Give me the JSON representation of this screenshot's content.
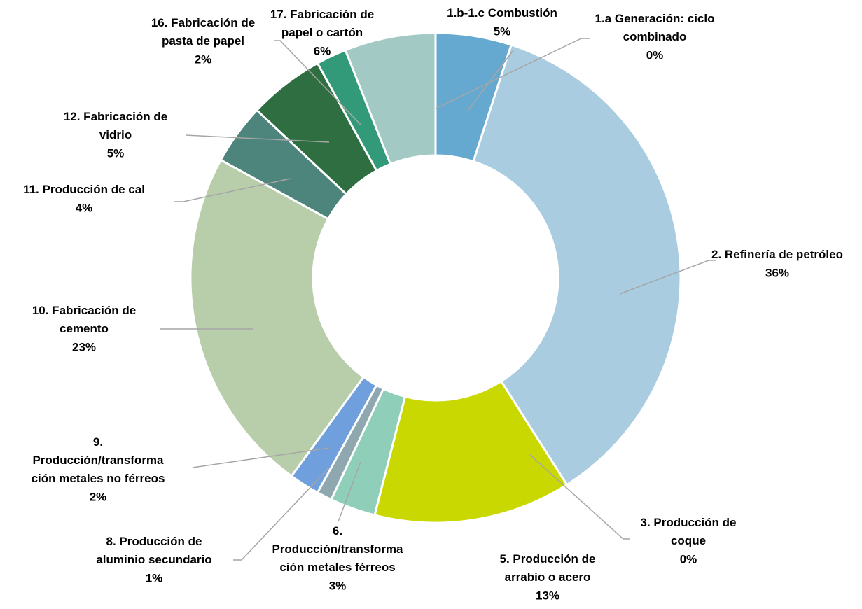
{
  "chart_data": {
    "type": "donut",
    "categories": [
      "1.a Generación: ciclo combinado",
      "1.b-1.c Combustión",
      "2. Refinería de petróleo",
      "3. Producción de coque",
      "5. Producción de arrabio o acero",
      "6. Producción/transformación metales férreos",
      "8. Producción de aluminio secundario",
      "9. Producción/transformación metales no férreos",
      "10. Fabricación de cemento",
      "11. Producción de cal",
      "12. Fabricación de vidrio",
      "16. Fabricación de pasta de papel",
      "17. Fabricación de papel o cartón"
    ],
    "values": [
      0,
      5,
      36,
      0,
      13,
      3,
      1,
      2,
      23,
      4,
      5,
      2,
      6
    ],
    "value_labels": [
      "0%",
      "5%",
      "36%",
      "0%",
      "13%",
      "3%",
      "1%",
      "2%",
      "23%",
      "4%",
      "5%",
      "2%",
      "6%"
    ],
    "colors": [
      "#3f7fb8",
      "#65a9d0",
      "#a9cce0",
      "#7a9cc0",
      "#c9d800",
      "#8fcfba",
      "#8fa8b0",
      "#6f9fdc",
      "#b8ceab",
      "#4d847b",
      "#2f6e40",
      "#329a78",
      "#a3c9c4"
    ]
  }
}
